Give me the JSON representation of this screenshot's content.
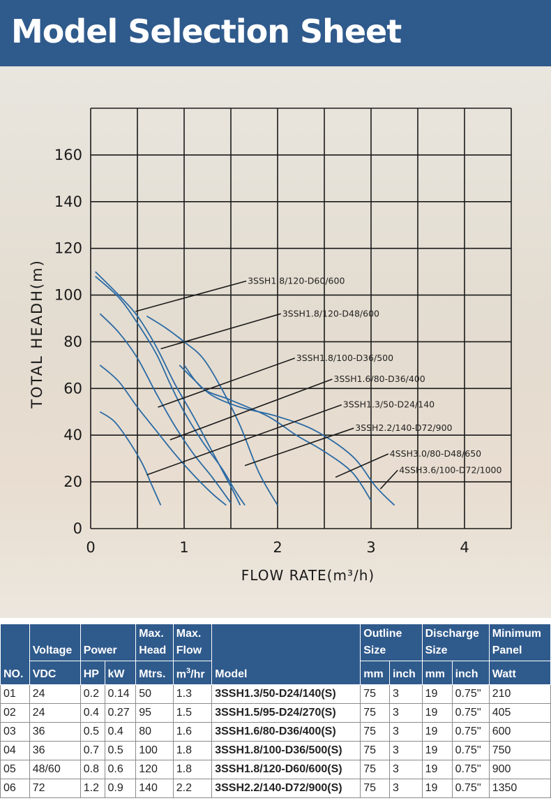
{
  "page_title": "Model Selection Sheet",
  "chart_data": {
    "type": "line",
    "xlabel": "FLOW RATE(m³/h)",
    "ylabel": "TOTAL HEADH(m)",
    "xlim": [
      0,
      4.5
    ],
    "ylim": [
      0,
      180
    ],
    "x_ticks": [
      0,
      1,
      2,
      3,
      4
    ],
    "y_ticks": [
      0,
      20,
      40,
      60,
      80,
      100,
      120,
      140,
      160
    ],
    "grid": true,
    "series": [
      {
        "name": "3SSH1.8/120-D60/600",
        "x": [
          0.05,
          0.3,
          0.5,
          0.7,
          0.9,
          1.1,
          1.3,
          1.5,
          1.6
        ],
        "y": [
          110,
          100,
          91,
          78,
          62,
          48,
          33,
          18,
          10
        ],
        "label_xy": [
          1.68,
          106
        ],
        "anchor_xy": [
          0.48,
          93
        ]
      },
      {
        "name": "3SSH1.8/120-D48/600",
        "x": [
          0.05,
          0.3,
          0.5,
          0.7,
          0.85,
          1.0,
          1.2,
          1.4,
          1.55,
          1.65
        ],
        "y": [
          108,
          99,
          88,
          75,
          62,
          50,
          37,
          26,
          16,
          10
        ],
        "label_xy": [
          2.05,
          92
        ],
        "anchor_xy": [
          0.75,
          77
        ]
      },
      {
        "name": "3SSH1.8/100-D36/500",
        "x": [
          0.1,
          0.3,
          0.5,
          0.7,
          0.9,
          1.1,
          1.3,
          1.5
        ],
        "y": [
          92,
          84,
          73,
          58,
          44,
          32,
          22,
          11
        ],
        "label_xy": [
          2.2,
          73
        ],
        "anchor_xy": [
          0.72,
          52
        ]
      },
      {
        "name": "3SSH1.6/80-D36/400",
        "x": [
          0.1,
          0.3,
          0.5,
          0.7,
          0.9,
          1.1,
          1.3,
          1.45
        ],
        "y": [
          70,
          63,
          52,
          42,
          32,
          23,
          15,
          10
        ],
        "label_xy": [
          2.6,
          64
        ],
        "anchor_xy": [
          0.85,
          38
        ]
      },
      {
        "name": "3SSH1.3/50-D24/140",
        "x": [
          0.1,
          0.25,
          0.4,
          0.55,
          0.65,
          0.75
        ],
        "y": [
          50,
          46,
          38,
          28,
          19,
          10
        ],
        "label_xy": [
          2.7,
          53
        ],
        "anchor_xy": [
          0.6,
          23
        ]
      },
      {
        "name": "3SSH2.2/140-D72/900",
        "x": [
          0.6,
          0.8,
          1.0,
          1.2,
          1.4,
          1.6,
          1.8,
          2.0
        ],
        "y": [
          91,
          86,
          80,
          73,
          60,
          44,
          24,
          10
        ],
        "label_xy": [
          2.83,
          43
        ],
        "anchor_xy": [
          1.65,
          27
        ]
      },
      {
        "name": "4SSH3.0/80-D48/650",
        "x": [
          1.0,
          1.2,
          1.5,
          1.9,
          2.2,
          2.5,
          2.8,
          3.0
        ],
        "y": [
          70,
          60,
          55,
          48,
          40,
          33,
          24,
          12
        ],
        "label_xy": [
          3.2,
          32
        ],
        "anchor_xy": [
          2.62,
          22
        ]
      },
      {
        "name": "4SSH3.6/100-D72/1000",
        "x": [
          0.95,
          1.1,
          1.3,
          1.6,
          2.0,
          2.4,
          2.8,
          3.05,
          3.25
        ],
        "y": [
          70,
          64,
          57,
          52,
          48,
          42,
          31,
          18,
          10
        ],
        "label_xy": [
          3.3,
          25
        ],
        "anchor_xy": [
          3.1,
          17
        ]
      }
    ]
  },
  "table": {
    "headers": {
      "no": "NO.",
      "voltage": "Voltage",
      "power": "Power",
      "max_head_1": "Max.",
      "max_head_2": "Head",
      "max_flow_1": "Max.",
      "max_flow_2": "Flow",
      "model": "Model",
      "outline_1": "Outline",
      "outline_2": "Size",
      "discharge_1": "Discharge",
      "discharge_2": "Size",
      "panel_1": "Minimum",
      "panel_2": "Panel"
    },
    "units": {
      "vdc": "VDC",
      "hp": "HP",
      "kw": "kW",
      "mtrs": "Mtrs.",
      "flow_base": "m",
      "flow_sup": "3",
      "flow_tail": "/hr",
      "mm1": "mm",
      "inch1": "inch",
      "mm2": "mm",
      "inch2": "inch",
      "watt": "Watt"
    },
    "rows": [
      {
        "no": "01",
        "vdc": "24",
        "hp": "0.2",
        "kw": "0.14",
        "head": "50",
        "flow": "1.3",
        "model": "3SSH1.3/50-D24/140(S)",
        "o_mm": "75",
        "o_inch": "3",
        "d_mm": "19",
        "d_inch": "0.75''",
        "watt": "210"
      },
      {
        "no": "02",
        "vdc": "24",
        "hp": "0.4",
        "kw": "0.27",
        "head": "95",
        "flow": "1.5",
        "model": "3SSH1.5/95-D24/270(S)",
        "o_mm": "75",
        "o_inch": "3",
        "d_mm": "19",
        "d_inch": "0.75''",
        "watt": "405"
      },
      {
        "no": "03",
        "vdc": "36",
        "hp": "0.5",
        "kw": "0.4",
        "head": "80",
        "flow": "1.6",
        "model": "3SSH1.6/80-D36/400(S)",
        "o_mm": "75",
        "o_inch": "3",
        "d_mm": "19",
        "d_inch": "0.75''",
        "watt": "600"
      },
      {
        "no": "04",
        "vdc": "36",
        "hp": "0.7",
        "kw": "0.5",
        "head": "100",
        "flow": "1.8",
        "model": "3SSH1.8/100-D36/500(S)",
        "o_mm": "75",
        "o_inch": "3",
        "d_mm": "19",
        "d_inch": "0.75''",
        "watt": "750"
      },
      {
        "no": "05",
        "vdc": "48/60",
        "hp": "0.8",
        "kw": "0.6",
        "head": "120",
        "flow": "1.8",
        "model": "3SSH1.8/120-D60/600(S)",
        "o_mm": "75",
        "o_inch": "3",
        "d_mm": "19",
        "d_inch": "0.75''",
        "watt": "900"
      },
      {
        "no": "06",
        "vdc": "72",
        "hp": "1.2",
        "kw": "0.9",
        "head": "140",
        "flow": "2.2",
        "model": "3SSH2.2/140-D72/900(S)",
        "o_mm": "75",
        "o_inch": "3",
        "d_mm": "19",
        "d_inch": "0.75''",
        "watt": "1350"
      }
    ]
  },
  "colors": {
    "header_bg": "#2f5a8c",
    "curve": "#2a6aa4",
    "grid": "#1a1a1a"
  }
}
